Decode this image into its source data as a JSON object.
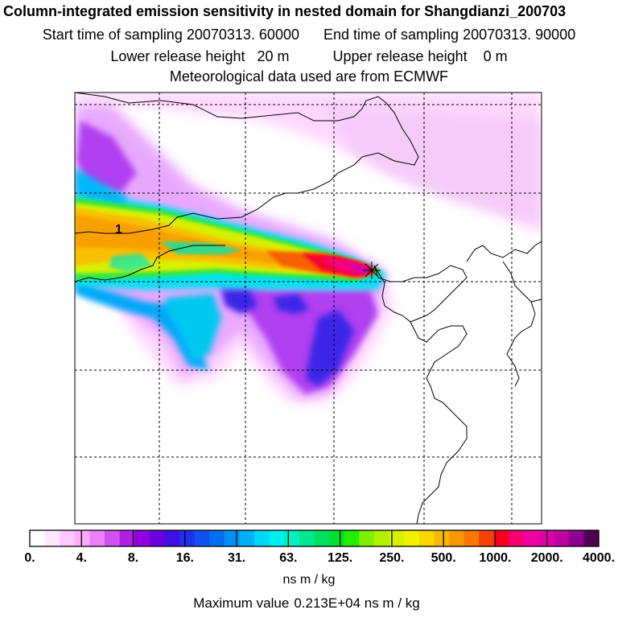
{
  "header": {
    "title": "Column-integrated emission sensitivity in nested domain for Shangdianzi_200703",
    "start_label": "Start time of sampling 20070313. 60000",
    "end_label": "End time of sampling 20070313. 90000",
    "lower_label": "Lower release height   20 m",
    "upper_label": "Upper release height    0 m",
    "met_label": "Meteorological data used are from ECMWF"
  },
  "map": {
    "contour_label": "1",
    "receptor_marker": "Shangdianzi receptor"
  },
  "colorbar": {
    "ticks": [
      "0.",
      "4.",
      "8.",
      "16.",
      "31.",
      "63.",
      "125.",
      "250.",
      "500.",
      "1000.",
      "2000.",
      "4000."
    ],
    "colors": [
      "#ffffff",
      "#ffe8ff",
      "#ffc8ff",
      "#ffaaff",
      "#ee80ff",
      "#d050f0",
      "#b020e0",
      "#9000e0",
      "#6a00e0",
      "#4010e0",
      "#2030f0",
      "#1050f0",
      "#0070f0",
      "#0090f8",
      "#00b0f8",
      "#00d8f8",
      "#00f0f0",
      "#00f0c0",
      "#00e890",
      "#00e060",
      "#00e030",
      "#20f000",
      "#80f000",
      "#b0f000",
      "#d8f000",
      "#f0f000",
      "#f8d800",
      "#f8b800",
      "#f89800",
      "#f87800",
      "#f84000",
      "#f80020",
      "#f80070",
      "#f000a0",
      "#e000a8",
      "#c000a0",
      "#900090",
      "#500050"
    ],
    "units": "ns m / kg",
    "max_label": "Maximum value",
    "max_value": "0.213E+04 ns m / kg"
  },
  "colors": {
    "grid": "#000000",
    "coast": "#000000",
    "frame": "#000000"
  }
}
